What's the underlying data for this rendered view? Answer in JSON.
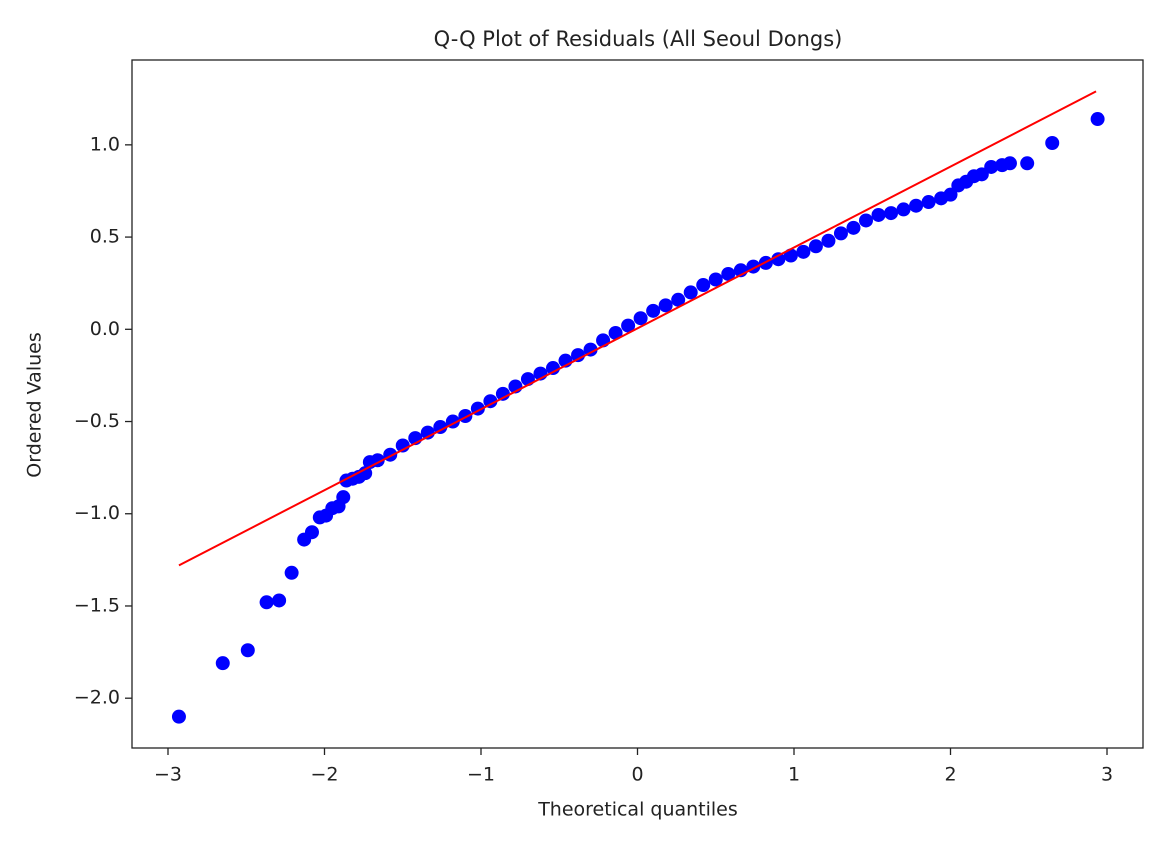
{
  "chart_data": {
    "type": "scatter",
    "title": "Q-Q Plot of Residuals (All Seoul Dongs)",
    "x_label": "Theoretical quantiles",
    "y_label": "Ordered Values",
    "xlim": [
      -3.23,
      3.23
    ],
    "ylim": [
      -2.27,
      1.46
    ],
    "xticks": [
      {
        "value": -3,
        "label": "−3"
      },
      {
        "value": -2,
        "label": "−2"
      },
      {
        "value": -1,
        "label": "−1"
      },
      0,
      1,
      2,
      3
    ],
    "yticks": [
      {
        "value": -2,
        "label": "−2.0"
      },
      {
        "value": -1.5,
        "label": "−1.5"
      },
      {
        "value": -1,
        "label": "−1.0"
      },
      {
        "value": -0.5,
        "label": "−0.5"
      },
      {
        "value": 0,
        "label": "0.0"
      },
      0.5,
      {
        "value": 1,
        "label": "1.0"
      }
    ],
    "grid": false,
    "points": {
      "color": "#0000ff",
      "x": [
        -2.93,
        -2.65,
        -2.49,
        -2.37,
        -2.29,
        -2.21,
        -2.13,
        -2.08,
        -2.03,
        -1.99,
        -1.95,
        -1.91,
        -1.88,
        -1.86,
        -1.82,
        -1.78,
        -1.74,
        -1.71,
        -1.66,
        -1.58,
        -1.5,
        -1.42,
        -1.34,
        -1.26,
        -1.18,
        -1.1,
        -1.02,
        -0.94,
        -0.86,
        -0.78,
        -0.7,
        -0.62,
        -0.54,
        -0.46,
        -0.38,
        -0.3,
        -0.22,
        -0.14,
        -0.06,
        0.02,
        0.1,
        0.18,
        0.26,
        0.34,
        0.42,
        0.5,
        0.58,
        0.66,
        0.74,
        0.82,
        0.9,
        0.98,
        1.06,
        1.14,
        1.22,
        1.3,
        1.38,
        1.46,
        1.54,
        1.62,
        1.7,
        1.78,
        1.86,
        1.94,
        2.0,
        2.05,
        2.1,
        2.15,
        2.2,
        2.26,
        2.33,
        2.38,
        2.49,
        2.65,
        2.94
      ],
      "y": [
        -2.1,
        -1.81,
        -1.74,
        -1.48,
        -1.47,
        -1.32,
        -1.14,
        -1.1,
        -1.02,
        -1.01,
        -0.97,
        -0.96,
        -0.91,
        -0.82,
        -0.81,
        -0.8,
        -0.78,
        -0.72,
        -0.71,
        -0.68,
        -0.63,
        -0.59,
        -0.56,
        -0.53,
        -0.5,
        -0.47,
        -0.43,
        -0.39,
        -0.35,
        -0.31,
        -0.27,
        -0.24,
        -0.21,
        -0.17,
        -0.14,
        -0.11,
        -0.06,
        -0.02,
        0.02,
        0.06,
        0.1,
        0.13,
        0.16,
        0.2,
        0.24,
        0.27,
        0.3,
        0.32,
        0.34,
        0.36,
        0.38,
        0.4,
        0.42,
        0.45,
        0.48,
        0.52,
        0.55,
        0.59,
        0.62,
        0.63,
        0.65,
        0.67,
        0.69,
        0.71,
        0.73,
        0.78,
        0.8,
        0.83,
        0.84,
        0.88,
        0.89,
        0.9,
        0.9,
        1.01,
        1.14
      ]
    },
    "fit_line": {
      "color": "#ff0000",
      "x": [
        -2.93,
        2.93
      ],
      "y": [
        -1.28,
        1.29
      ]
    }
  }
}
